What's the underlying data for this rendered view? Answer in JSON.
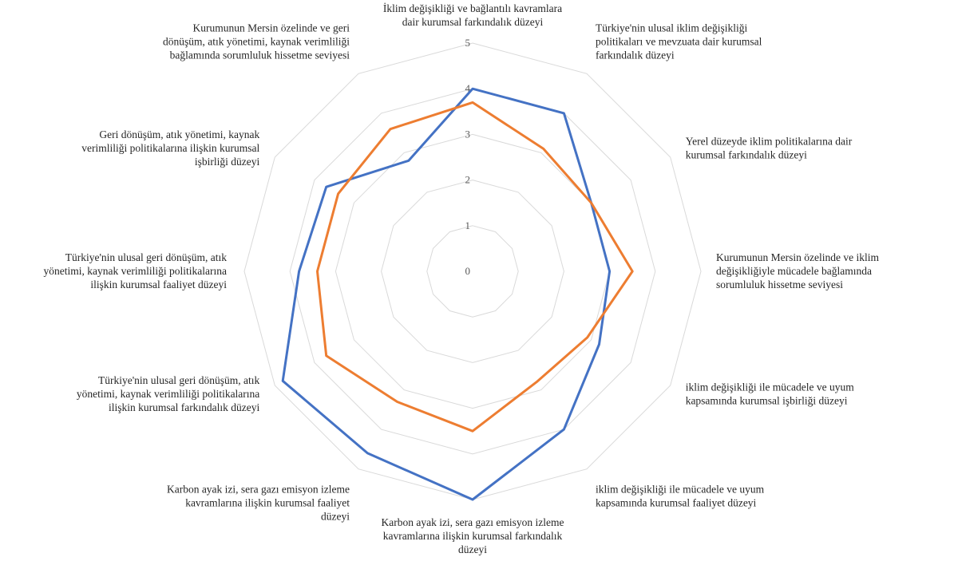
{
  "chart_data": {
    "type": "radar",
    "title": "",
    "r_range": [
      0,
      5
    ],
    "r_ticks": [
      0,
      1,
      2,
      3,
      4,
      5
    ],
    "grid": true,
    "legend": "none",
    "axes": [
      {
        "lines": [
          "İklim değişikliği ve bağlantılı kavramlara",
          "dair kurumsal farkındalık düzeyi"
        ]
      },
      {
        "lines": [
          "Türkiye'nin ulusal iklim değişikliği",
          "politikaları ve mevzuata dair kurumsal",
          "farkındalık düzeyi"
        ]
      },
      {
        "lines": [
          "Yerel düzeyde iklim politikalarına dair",
          "kurumsal farkındalık düzeyi"
        ]
      },
      {
        "lines": [
          "Kurumunun Mersin özelinde ve iklim",
          "değişikliğiyle mücadele bağlamında",
          "sorumluluk hissetme seviyesi"
        ]
      },
      {
        "lines": [
          "iklim değişikliği ile mücadele ve uyum",
          "kapsamında kurumsal işbirliği düzeyi"
        ]
      },
      {
        "lines": [
          "iklim değişikliği ile mücadele ve uyum",
          "kapsamında kurumsal faaliyet düzeyi"
        ]
      },
      {
        "lines": [
          "Karbon ayak izi, sera gazı emisyon izleme",
          "kavramlarına ilişkin kurumsal farkındalık",
          "düzeyi"
        ]
      },
      {
        "lines": [
          "Karbon ayak izi, sera gazı emisyon izleme",
          "kavramlarına ilişkin kurumsal faaliyet",
          "düzeyi"
        ]
      },
      {
        "lines": [
          "Türkiye'nin ulusal geri dönüşüm, atık",
          "yönetimi, kaynak verimliliği politikalarına",
          "ilişkin kurumsal farkındalık düzeyi"
        ]
      },
      {
        "lines": [
          "Türkiye'nin ulusal geri dönüşüm, atık",
          "yönetimi, kaynak verimliliği politikalarına",
          "ilişkin kurumsal faaliyet düzeyi"
        ]
      },
      {
        "lines": [
          "Geri dönüşüm, atık yönetimi, kaynak",
          "verimliliği politikalarına ilişkin kurumsal",
          "işbirliği düzeyi"
        ]
      },
      {
        "lines": [
          "Kurumunun Mersin özelinde ve geri",
          "dönüşüm, atık yönetimi, kaynak verimliliği",
          "bağlamında sorumluluk hissetme seviyesi"
        ]
      }
    ],
    "series": [
      {
        "color": "#4472C4",
        "values": [
          4.0,
          4.0,
          3.0,
          3.0,
          3.2,
          4.0,
          5.0,
          4.6,
          4.8,
          3.8,
          3.7,
          2.8
        ]
      },
      {
        "color": "#ED7D31",
        "values": [
          3.7,
          3.1,
          3.0,
          3.5,
          2.9,
          2.8,
          3.5,
          3.3,
          3.7,
          3.4,
          3.4,
          3.6
        ]
      }
    ],
    "grid_color": "#D9D9D9"
  }
}
